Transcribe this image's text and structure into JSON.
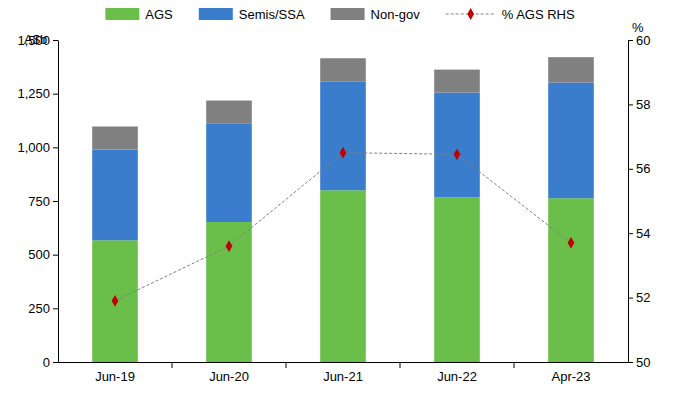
{
  "chart_data": {
    "type": "bar",
    "stacked": true,
    "legend": "top",
    "grid": false,
    "y_label": "A$b",
    "y2_label": "%",
    "categories": [
      "Jun-19",
      "Jun-20",
      "Jun-21",
      "Jun-22",
      "Apr-23"
    ],
    "ylim": [
      0,
      1500
    ],
    "yticks": [
      0,
      250,
      500,
      750,
      {
        "value": 1000,
        "label": "1,000"
      },
      {
        "value": 1250,
        "label": "1,250"
      },
      {
        "value": 1500,
        "label": "1,500"
      }
    ],
    "y2lim": [
      50,
      60
    ],
    "y2ticks": [
      50,
      52,
      54,
      56,
      58,
      60
    ],
    "series": [
      {
        "name": "AGS",
        "type": "bar",
        "color": "#6abf4b",
        "values": [
          567,
          652,
          800,
          768,
          763
        ]
      },
      {
        "name": "Semis/SSA",
        "type": "bar",
        "color": "#3a7dcc",
        "values": [
          423,
          460,
          507,
          487,
          539
        ]
      },
      {
        "name": "Non-gov",
        "type": "bar",
        "color": "#808080",
        "values": [
          107,
          106,
          108,
          107,
          118
        ]
      },
      {
        "name": "% AGS RHS",
        "type": "line",
        "axis": "y2",
        "color": "#808080",
        "line_style": "dashed",
        "marker": "diamond",
        "colors": [
          "#c00000",
          "#c00000",
          "#c00000",
          "#c00000",
          "#c00000"
        ],
        "values": [
          51.9,
          53.6,
          56.5,
          56.45,
          53.7
        ]
      }
    ]
  }
}
